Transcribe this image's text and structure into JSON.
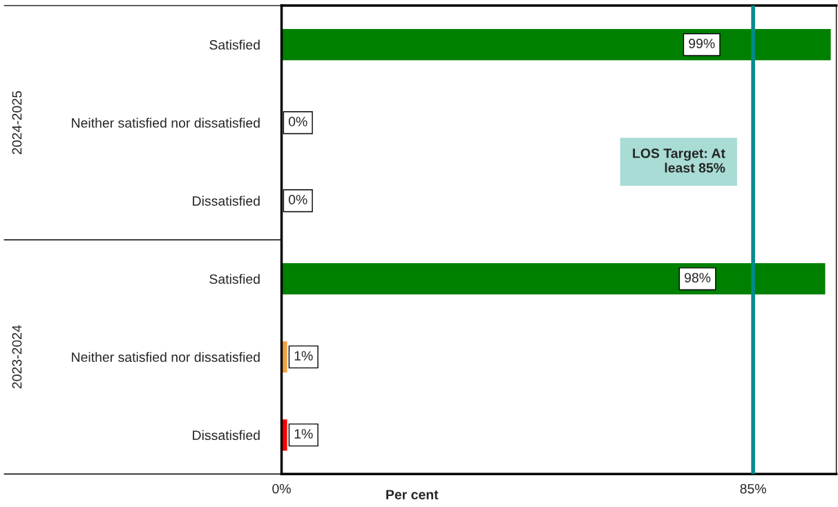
{
  "chart_data": {
    "type": "bar",
    "orientation": "horizontal",
    "xlabel": "Per cent",
    "categories": [
      "Satisfied",
      "Neither satisfied nor dissatisfied",
      "Dissatisfied",
      "Satisfied",
      "Neither satisfied nor dissatisfied",
      "Dissatisfied"
    ],
    "values": [
      99,
      0,
      0,
      98,
      1,
      1
    ],
    "colors": [
      "#008000",
      "#f4a040",
      "#f4a040",
      "#008000",
      "#f4a040",
      "#ff0000"
    ],
    "value_labels": [
      "99%",
      "0%",
      "0%",
      "98%",
      "1%",
      "1%"
    ],
    "xlim": [
      0,
      100
    ],
    "xticks": [
      {
        "value": 0,
        "label": "0%"
      },
      {
        "value": 85,
        "label": "85%"
      }
    ],
    "ref_lines": [
      {
        "axis": "x",
        "value": 85,
        "label": "LOS Target: At\nleast 85%",
        "color": "#008b8b"
      }
    ],
    "annotations": [
      "2024-2025",
      "2023-2024"
    ],
    "grid": false,
    "legend": false
  }
}
